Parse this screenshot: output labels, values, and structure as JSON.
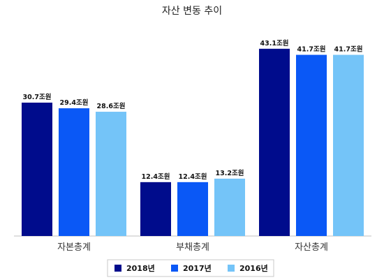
{
  "chart_data": {
    "type": "bar",
    "title": "자산 변동 추이",
    "categories": [
      "자본총계",
      "부채총계",
      "자산총계"
    ],
    "series": [
      {
        "name": "2018년",
        "color": "#000c8c",
        "values": [
          30.7,
          12.4,
          43.1
        ],
        "labels": [
          "30.7조원",
          "12.4조원",
          "43.1조원"
        ]
      },
      {
        "name": "2017년",
        "color": "#0a58f6",
        "values": [
          29.4,
          12.4,
          41.7
        ],
        "labels": [
          "29.4조원",
          "12.4조원",
          "41.7조원"
        ]
      },
      {
        "name": "2016년",
        "color": "#74c4f8",
        "values": [
          28.6,
          13.2,
          41.7
        ],
        "labels": [
          "28.6조원",
          "13.2조원",
          "41.7조원"
        ]
      }
    ],
    "ylim": [
      0,
      45
    ],
    "grid": false,
    "legend_position": "bottom"
  }
}
